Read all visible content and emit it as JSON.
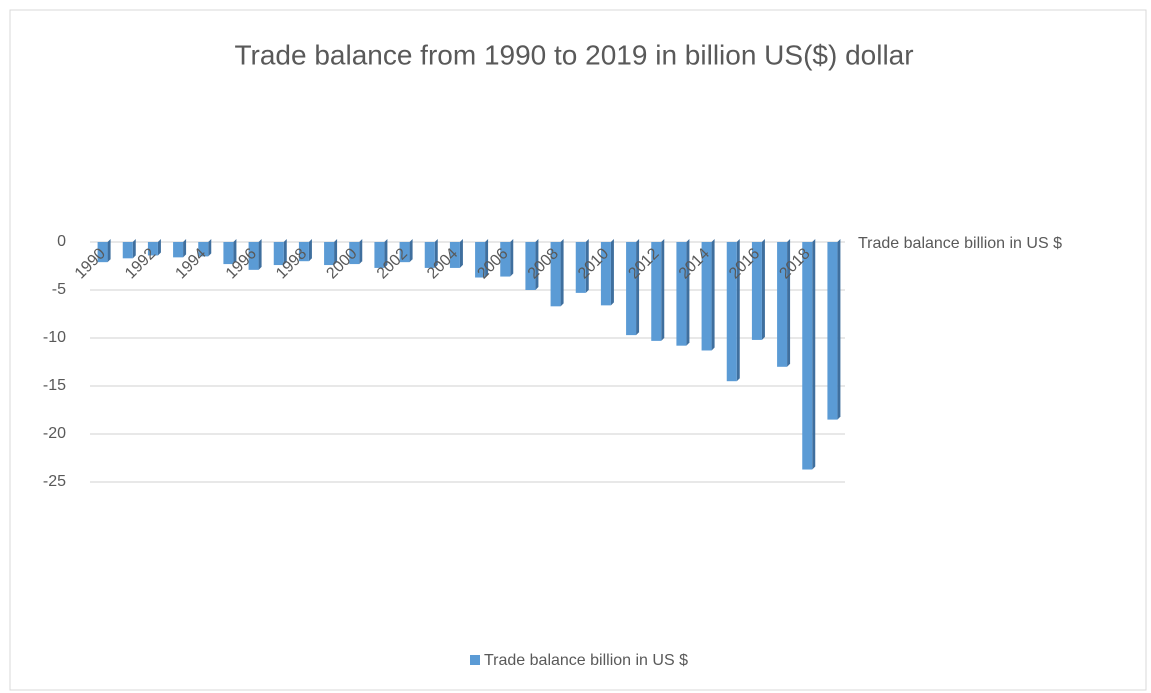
{
  "chart_data": {
    "type": "bar3d",
    "title": "Trade balance from 1990 to 2019 in billion US($) dollar",
    "categories": [
      "1990",
      null,
      "1992",
      null,
      "1994",
      null,
      "1996",
      null,
      "1998",
      null,
      "2000",
      null,
      "2002",
      null,
      "2004",
      null,
      "2006",
      null,
      "2008",
      null,
      "2010",
      null,
      "2012",
      null,
      "2014",
      null,
      "2016",
      null,
      "2018",
      null
    ],
    "series": [
      {
        "name": "Trade balance billion in US $",
        "color": "#5b9bd5",
        "values": [
          -2.1,
          -1.7,
          -1.4,
          -1.6,
          -1.5,
          -2.3,
          -2.9,
          -2.4,
          -2.0,
          -2.4,
          -2.3,
          -2.7,
          -2.1,
          -2.7,
          -2.7,
          -3.7,
          -3.6,
          -5.0,
          -6.7,
          -5.3,
          -6.6,
          -9.7,
          -10.3,
          -10.8,
          -11.3,
          -14.5,
          -10.2,
          -13.0,
          -23.7,
          -18.5
        ]
      }
    ],
    "ylim": [
      -25,
      0
    ],
    "yticks": [
      0,
      -5,
      -10,
      -15,
      -20,
      -25
    ],
    "grid": true,
    "legend": "bottom"
  }
}
